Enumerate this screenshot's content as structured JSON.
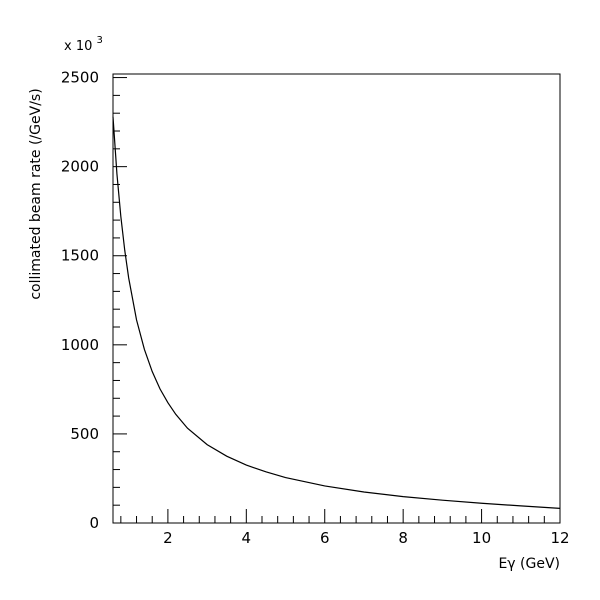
{
  "chart_data": {
    "type": "line",
    "title": "",
    "xlabel": "Eγ (GeV)",
    "ylabel": "collimated beam rate (/GeV/s)",
    "y_multiplier_base": "x 10",
    "y_multiplier_exp": "3",
    "xlim": [
      0.6,
      12
    ],
    "ylim": [
      0,
      2520
    ],
    "x_ticks": [
      2,
      4,
      6,
      8,
      10,
      12
    ],
    "x_tick_labels": [
      "2",
      "4",
      "6",
      "8",
      "10",
      "12"
    ],
    "y_ticks": [
      0,
      500,
      1000,
      1500,
      2000,
      2500
    ],
    "y_tick_labels": [
      "0",
      "500",
      "1000",
      "1500",
      "2000",
      "2500"
    ],
    "grid": false,
    "series": [
      {
        "color": "#000000",
        "x": [
          0.6,
          0.7,
          0.8,
          0.9,
          1.0,
          1.2,
          1.4,
          1.6,
          1.8,
          2.0,
          2.2,
          2.5,
          3.0,
          3.5,
          4.0,
          4.5,
          5.0,
          6.0,
          7.0,
          8.0,
          9.0,
          10.0,
          11.0,
          12.0
        ],
        "y": [
          2280,
          1960,
          1720,
          1530,
          1375,
          1140,
          975,
          850,
          752,
          675,
          610,
          532,
          440,
          375,
          325,
          287,
          255,
          208,
          174,
          148,
          128,
          111,
          96,
          82
        ]
      }
    ]
  }
}
